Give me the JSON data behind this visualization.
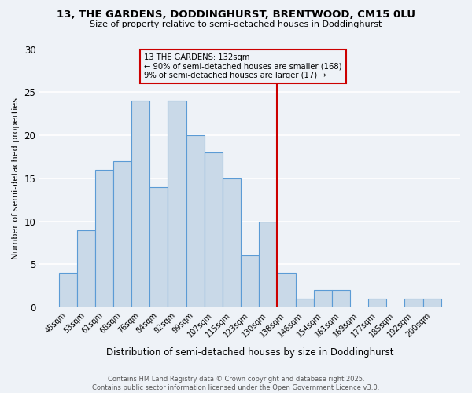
{
  "title_line1": "13, THE GARDENS, DODDINGHURST, BRENTWOOD, CM15 0LU",
  "title_line2": "Size of property relative to semi-detached houses in Doddinghurst",
  "xlabel": "Distribution of semi-detached houses by size in Doddinghurst",
  "ylabel": "Number of semi-detached properties",
  "footer_line1": "Contains HM Land Registry data © Crown copyright and database right 2025.",
  "footer_line2": "Contains public sector information licensed under the Open Government Licence v3.0.",
  "bar_labels": [
    "45sqm",
    "53sqm",
    "61sqm",
    "68sqm",
    "76sqm",
    "84sqm",
    "92sqm",
    "99sqm",
    "107sqm",
    "115sqm",
    "123sqm",
    "130sqm",
    "138sqm",
    "146sqm",
    "154sqm",
    "161sqm",
    "169sqm",
    "177sqm",
    "185sqm",
    "192sqm",
    "200sqm"
  ],
  "bar_values": [
    4,
    9,
    16,
    17,
    24,
    14,
    24,
    20,
    18,
    15,
    6,
    10,
    4,
    1,
    2,
    2,
    0,
    1,
    0,
    1,
    1
  ],
  "bar_color": "#c9d9e8",
  "bar_edge_color": "#5b9bd5",
  "vline_x_index": 11.5,
  "vline_color": "#cc0000",
  "annotation_title": "13 THE GARDENS: 132sqm",
  "annotation_line1": "← 90% of semi-detached houses are smaller (168)",
  "annotation_line2": "9% of semi-detached houses are larger (17) →",
  "annotation_box_color": "#cc0000",
  "ylim": [
    0,
    30
  ],
  "yticks": [
    0,
    5,
    10,
    15,
    20,
    25,
    30
  ],
  "background_color": "#eef2f7",
  "grid_color": "#ffffff"
}
